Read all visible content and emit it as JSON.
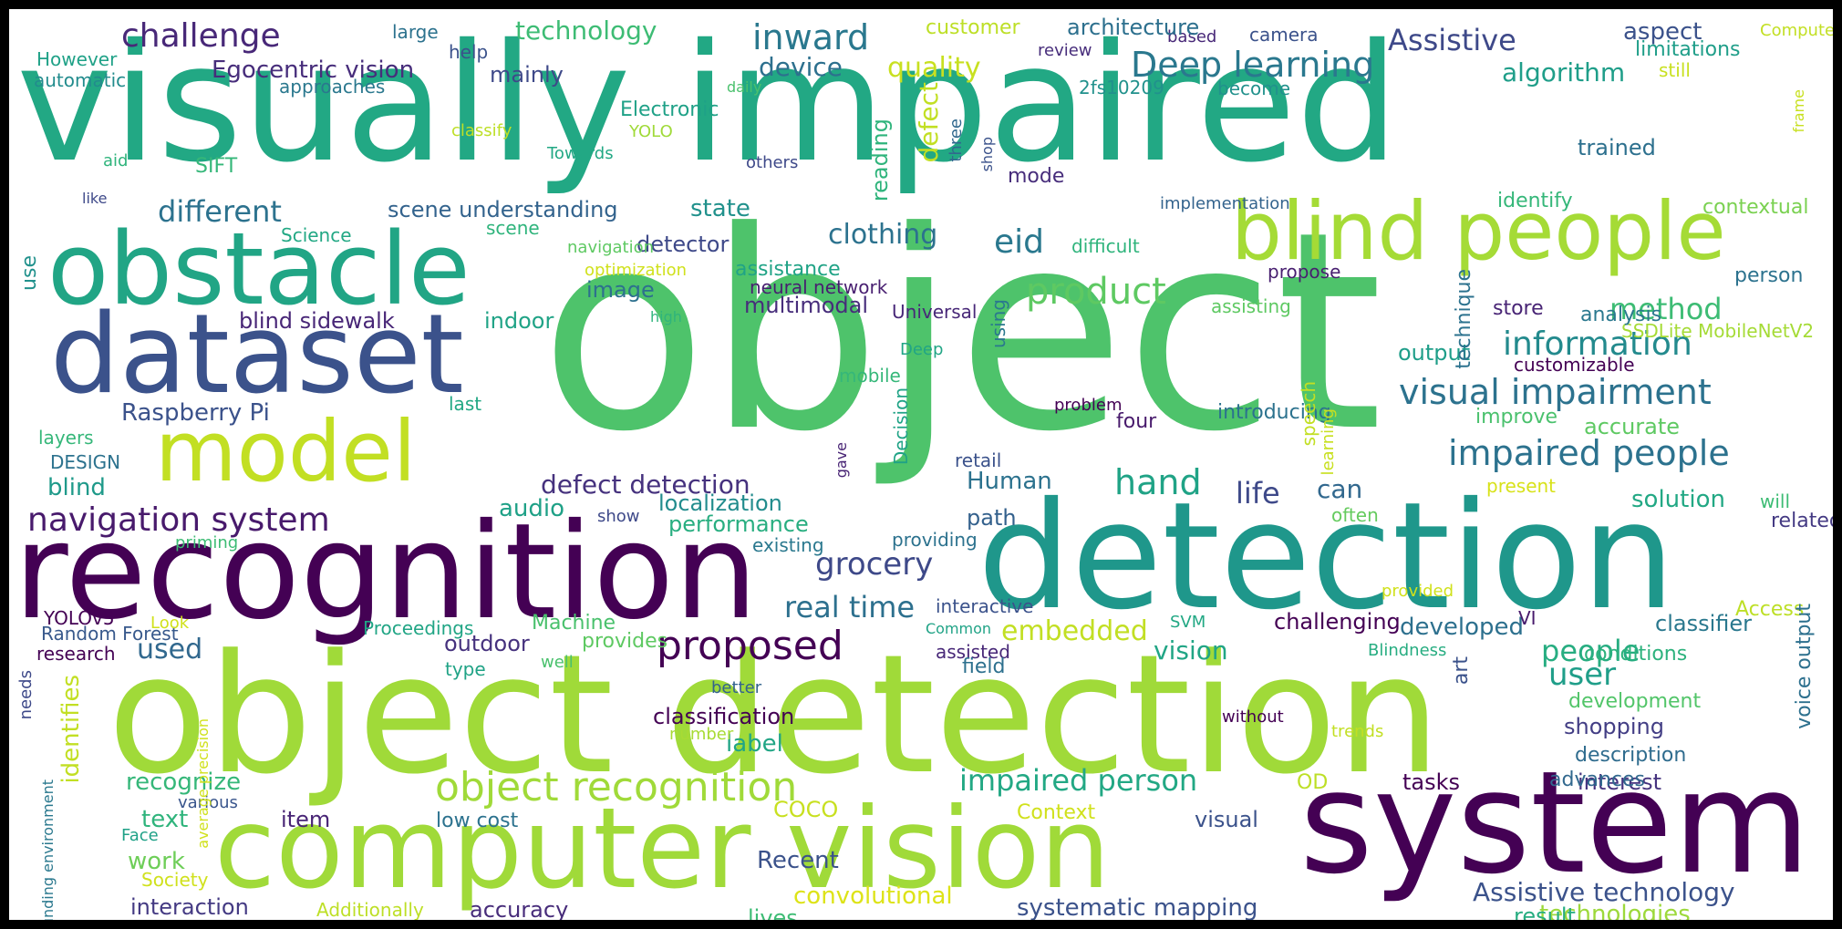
{
  "words": [
    {
      "text": "visually impaired",
      "color": "#22a884"
    },
    {
      "text": "object",
      "color": "#4ec36b"
    },
    {
      "text": "object detection",
      "color": "#a0da39"
    },
    {
      "text": "detection",
      "color": "#1f978b"
    },
    {
      "text": "recognition",
      "color": "#440154"
    },
    {
      "text": "system",
      "color": "#440154"
    },
    {
      "text": "computer vision",
      "color": "#a0da39"
    },
    {
      "text": "obstacle",
      "color": "#21a585"
    },
    {
      "text": "dataset",
      "color": "#3b528b"
    },
    {
      "text": "blind people",
      "color": "#a5db36"
    },
    {
      "text": "model",
      "color": "#c2df23"
    },
    {
      "text": "navigation system",
      "color": "#481a6c"
    },
    {
      "text": "proposed",
      "color": "#440154"
    },
    {
      "text": "object recognition",
      "color": "#a0da39"
    },
    {
      "text": "impaired people",
      "color": "#2c728e"
    },
    {
      "text": "visual impairment",
      "color": "#2c728e"
    },
    {
      "text": "information",
      "color": "#238a8d"
    },
    {
      "text": "product",
      "color": "#5ec962"
    },
    {
      "text": "Deep learning",
      "color": "#2a788e"
    },
    {
      "text": "grocery",
      "color": "#3e4989"
    },
    {
      "text": "inward",
      "color": "#2a788e"
    },
    {
      "text": "challenge",
      "color": "#482878"
    },
    {
      "text": "hand",
      "color": "#20a386"
    },
    {
      "text": "impaired person",
      "color": "#22a884"
    },
    {
      "text": "real time",
      "color": "#2d708e"
    },
    {
      "text": "eid",
      "color": "#2a788e"
    },
    {
      "text": "clothing",
      "color": "#2c728e"
    },
    {
      "text": "different",
      "color": "#2c728e"
    },
    {
      "text": "Assistive",
      "color": "#3e4989"
    },
    {
      "text": "people",
      "color": "#27ad81"
    },
    {
      "text": "user",
      "color": "#1f9e89"
    },
    {
      "text": "life",
      "color": "#3e4989"
    },
    {
      "text": "method",
      "color": "#3dbc74"
    },
    {
      "text": "quality",
      "color": "#c8e020"
    },
    {
      "text": "device",
      "color": "#2d708e"
    },
    {
      "text": "technology",
      "color": "#3dbc74"
    },
    {
      "text": "algorithm",
      "color": "#1f9e89"
    },
    {
      "text": "embedded",
      "color": "#c2df23"
    },
    {
      "text": "vision",
      "color": "#21a585"
    },
    {
      "text": "used",
      "color": "#31688e"
    },
    {
      "text": "defect detection",
      "color": "#46327e"
    },
    {
      "text": "Egocentric vision",
      "color": "#472d7b"
    },
    {
      "text": "Raspberry Pi",
      "color": "#3b528b"
    },
    {
      "text": "blind sidewalk",
      "color": "#482677"
    },
    {
      "text": "scene understanding",
      "color": "#33638d"
    },
    {
      "text": "state",
      "color": "#21918c"
    },
    {
      "text": "detector",
      "color": "#3e4989"
    },
    {
      "text": "assistance",
      "color": "#20a386"
    },
    {
      "text": "image",
      "color": "#2d708e"
    },
    {
      "text": "multimodal",
      "color": "#472d7b"
    },
    {
      "text": "neural network",
      "color": "#481f70"
    },
    {
      "text": "indoor",
      "color": "#20a386"
    },
    {
      "text": "blind",
      "color": "#1f9a8a"
    },
    {
      "text": "audio",
      "color": "#1fa187"
    },
    {
      "text": "localization",
      "color": "#228c8d"
    },
    {
      "text": "performance",
      "color": "#28ae80"
    },
    {
      "text": "Human",
      "color": "#2c728e"
    },
    {
      "text": "can",
      "color": "#31688e"
    },
    {
      "text": "solution",
      "color": "#22a884"
    },
    {
      "text": "output",
      "color": "#1f9e89"
    },
    {
      "text": "recognize",
      "color": "#35b779"
    },
    {
      "text": "classification",
      "color": "#440154"
    },
    {
      "text": "label",
      "color": "#21a585"
    },
    {
      "text": "text",
      "color": "#2fb47c"
    },
    {
      "text": "work",
      "color": "#6ece58"
    },
    {
      "text": "item",
      "color": "#482475"
    },
    {
      "text": "interaction",
      "color": "#443a83"
    },
    {
      "text": "accuracy",
      "color": "#472c7a"
    },
    {
      "text": "systematic mapping",
      "color": "#3b528b"
    },
    {
      "text": "Assistive technology",
      "color": "#3b528b"
    },
    {
      "text": "technologies",
      "color": "#9dd93b"
    },
    {
      "text": "result",
      "color": "#27ad81"
    },
    {
      "text": "lives",
      "color": "#3dbc74"
    },
    {
      "text": "convolutional",
      "color": "#dde318"
    },
    {
      "text": "Recent",
      "color": "#3b528b"
    },
    {
      "text": "visual",
      "color": "#3b528b"
    },
    {
      "text": "tasks",
      "color": "#440154"
    },
    {
      "text": "interest",
      "color": "#46337f"
    },
    {
      "text": "shopping",
      "color": "#433e85"
    },
    {
      "text": "development",
      "color": "#52c569"
    },
    {
      "text": "description",
      "color": "#2f6c8e"
    },
    {
      "text": "conditions",
      "color": "#2db27d"
    },
    {
      "text": "classifier",
      "color": "#2a788e"
    },
    {
      "text": "challenging",
      "color": "#440154"
    },
    {
      "text": "developed",
      "color": "#2d708e"
    },
    {
      "text": "outdoor",
      "color": "#46327e"
    },
    {
      "text": "provides",
      "color": "#5ec962"
    },
    {
      "text": "type",
      "color": "#20a386"
    },
    {
      "text": "number",
      "color": "#a8db34"
    },
    {
      "text": "COCO",
      "color": "#c8e020"
    },
    {
      "text": "Context",
      "color": "#d0e11c"
    },
    {
      "text": "low cost",
      "color": "#2c728e"
    },
    {
      "text": "Random Forest",
      "color": "#38598c"
    },
    {
      "text": "research",
      "color": "#440154"
    },
    {
      "text": "YOLOv5",
      "color": "#440154"
    },
    {
      "text": "Look",
      "color": "#d0e11c"
    },
    {
      "text": "Proceedings",
      "color": "#21a585"
    },
    {
      "text": "Machine",
      "color": "#4ac16d"
    },
    {
      "text": "assisted",
      "color": "#482878"
    },
    {
      "text": "field",
      "color": "#2d708e"
    },
    {
      "text": "well",
      "color": "#4ac16d"
    },
    {
      "text": "better",
      "color": "#33638d"
    },
    {
      "text": "providing",
      "color": "#2c728e"
    },
    {
      "text": "existing",
      "color": "#2a788e"
    },
    {
      "text": "path",
      "color": "#34618d"
    },
    {
      "text": "often",
      "color": "#65cb5e"
    },
    {
      "text": "related",
      "color": "#443a83"
    },
    {
      "text": "will",
      "color": "#3dbc74"
    },
    {
      "text": "Access",
      "color": "#bddf26"
    },
    {
      "text": "VI",
      "color": "#481a6c"
    },
    {
      "text": "Blindness",
      "color": "#27ad81"
    },
    {
      "text": "SVM",
      "color": "#22a884"
    },
    {
      "text": "provided",
      "color": "#d0e11c"
    },
    {
      "text": "without",
      "color": "#440154"
    },
    {
      "text": "trends",
      "color": "#c2df23"
    },
    {
      "text": "advances",
      "color": "#31688e"
    },
    {
      "text": "OD",
      "color": "#bddf26"
    },
    {
      "text": "accurate",
      "color": "#5ec962"
    },
    {
      "text": "improve",
      "color": "#4ac16d"
    },
    {
      "text": "present",
      "color": "#d8e219"
    },
    {
      "text": "customizable",
      "color": "#440154"
    },
    {
      "text": "SSDLite MobileNetV2",
      "color": "#a5db36"
    },
    {
      "text": "analysis",
      "color": "#2a788e"
    },
    {
      "text": "store",
      "color": "#482475"
    },
    {
      "text": "person",
      "color": "#2c728e"
    },
    {
      "text": "identify",
      "color": "#35b779"
    },
    {
      "text": "contextual",
      "color": "#7ad151"
    },
    {
      "text": "still",
      "color": "#c8e020"
    },
    {
      "text": "Computer",
      "color": "#c2df23"
    },
    {
      "text": "limitations",
      "color": "#1f9e89"
    },
    {
      "text": "aspect",
      "color": "#3b528b"
    },
    {
      "text": "camera",
      "color": "#3b528b"
    },
    {
      "text": "based",
      "color": "#482878"
    },
    {
      "text": "review",
      "color": "#472d7b"
    },
    {
      "text": "become",
      "color": "#21918c"
    },
    {
      "text": "2fs10209",
      "color": "#21918c"
    },
    {
      "text": "architecture",
      "color": "#2d708e"
    },
    {
      "text": "customer",
      "color": "#bddf26"
    },
    {
      "text": "large",
      "color": "#2c728e"
    },
    {
      "text": "help",
      "color": "#3b528b"
    },
    {
      "text": "However",
      "color": "#1fa187"
    },
    {
      "text": "automatic",
      "color": "#228c8d"
    },
    {
      "text": "approaches",
      "color": "#2a788e"
    },
    {
      "text": "mainly",
      "color": "#3e4989"
    },
    {
      "text": "Electronic",
      "color": "#1fa187"
    },
    {
      "text": "daily",
      "color": "#4ac16d"
    },
    {
      "text": "YOLO",
      "color": "#a0da39"
    },
    {
      "text": "classify",
      "color": "#bddf26"
    },
    {
      "text": "Towards",
      "color": "#22a884"
    },
    {
      "text": "others",
      "color": "#3e4989"
    },
    {
      "text": "aid",
      "color": "#2fb47c"
    },
    {
      "text": "SIFT",
      "color": "#35b779"
    },
    {
      "text": "like",
      "color": "#3e4989"
    },
    {
      "text": "Science",
      "color": "#22a884"
    },
    {
      "text": "scene",
      "color": "#2fb47c"
    },
    {
      "text": "navigation",
      "color": "#5ec962"
    },
    {
      "text": "optimization",
      "color": "#d0e11c"
    },
    {
      "text": "high",
      "color": "#2fb47c"
    },
    {
      "text": "Universal",
      "color": "#482878"
    },
    {
      "text": "Deep",
      "color": "#21a585"
    },
    {
      "text": "mobile",
      "color": "#35b779"
    },
    {
      "text": "four",
      "color": "#481a6c"
    },
    {
      "text": "problem",
      "color": "#440154"
    },
    {
      "text": "mode",
      "color": "#472d7b"
    },
    {
      "text": "difficult",
      "color": "#2fb47c"
    },
    {
      "text": "propose",
      "color": "#481f70"
    },
    {
      "text": "assisting",
      "color": "#5ec962"
    },
    {
      "text": "implementation",
      "color": "#33638d"
    },
    {
      "text": "introducing",
      "color": "#2c728e"
    },
    {
      "text": "last",
      "color": "#22a884"
    },
    {
      "text": "layers",
      "color": "#35b779"
    },
    {
      "text": "DESIGN",
      "color": "#2c728e"
    },
    {
      "text": "priming",
      "color": "#3dbc74"
    },
    {
      "text": "retail",
      "color": "#3b528b"
    },
    {
      "text": "interactive",
      "color": "#3b528b"
    },
    {
      "text": "Common",
      "color": "#20a386"
    },
    {
      "text": "show",
      "color": "#3e4989"
    },
    {
      "text": "various",
      "color": "#39558c"
    },
    {
      "text": "Face",
      "color": "#1fa187"
    },
    {
      "text": "Society",
      "color": "#d0e11c"
    },
    {
      "text": "Additionally",
      "color": "#bddf26"
    },
    {
      "text": "use",
      "color": "#21918c"
    },
    {
      "text": "needs",
      "color": "#3e4989"
    },
    {
      "text": "surrounding environment",
      "color": "#2a788e"
    },
    {
      "text": "average precision",
      "color": "#d0e11c"
    },
    {
      "text": "identifies",
      "color": "#c2df23"
    },
    {
      "text": "gave",
      "color": "#482475"
    },
    {
      "text": "Decision",
      "color": "#20a386"
    },
    {
      "text": "speech",
      "color": "#c2df23"
    },
    {
      "text": "learning",
      "color": "#c8e020"
    },
    {
      "text": "technique",
      "color": "#2c728e"
    },
    {
      "text": "using",
      "color": "#2a788e"
    },
    {
      "text": "three",
      "color": "#31688e"
    },
    {
      "text": "shop",
      "color": "#3b528b"
    },
    {
      "text": "reading",
      "color": "#2fb47c"
    },
    {
      "text": "defect",
      "color": "#c2df23"
    },
    {
      "text": "trained",
      "color": "#2d708e"
    },
    {
      "text": "art",
      "color": "#3b528b"
    },
    {
      "text": "frame",
      "color": "#c8e020"
    },
    {
      "text": "voice output",
      "color": "#2d708e"
    }
  ]
}
